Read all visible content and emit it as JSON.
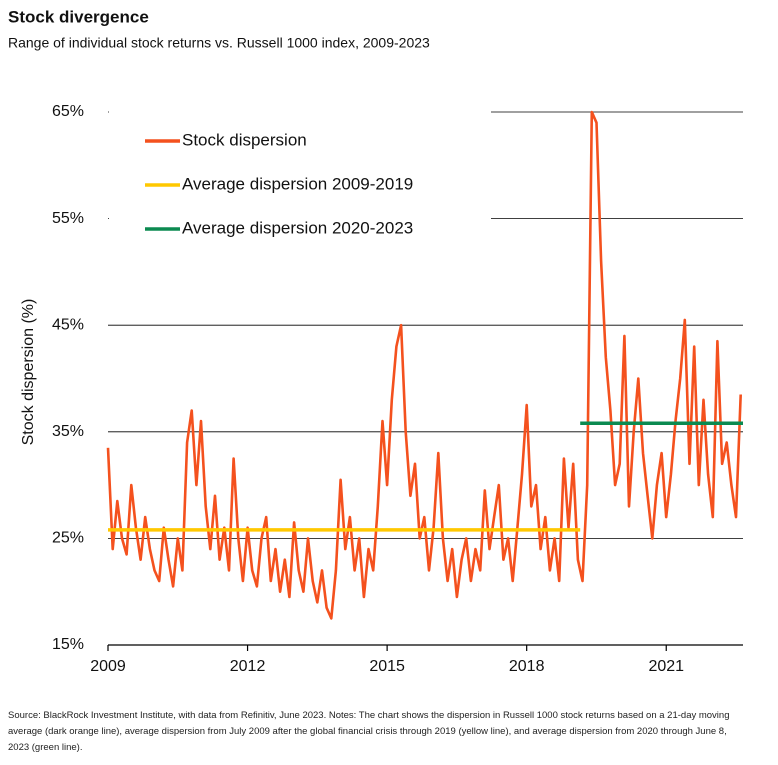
{
  "chart_data": {
    "type": "line",
    "title": "Stock divergence",
    "subtitle": "Range of individual stock returns vs. Russell 1000 index, 2009-2023",
    "y_label": "Stock dispersion (%)",
    "note": "Source: BlackRock Investment Institute, with data from Refinitiv, June 2023. Notes: The chart shows the dispersion in Russell 1000 stock returns based on a 21-day moving average (dark orange line), average dispersion from July 2009 after the global financial crisis through 2019 (yellow line), and average dispersion from 2020 through June 8, 2023 (green line).",
    "xlim": [
      2009,
      2022.65
    ],
    "xticks": [
      2009,
      2012,
      2015,
      2018,
      2021
    ],
    "ylim": [
      15,
      65
    ],
    "yticks": [
      {
        "value": 15,
        "label": "15%"
      },
      {
        "value": 25,
        "label": "25%"
      },
      {
        "value": 35,
        "label": "35%"
      },
      {
        "value": 45,
        "label": "45%"
      },
      {
        "value": 55,
        "label": "55%"
      },
      {
        "value": 65,
        "label": "65%"
      }
    ],
    "grid": true,
    "legend": "upper left",
    "series": [
      {
        "name": "Stock dispersion",
        "color": "#f4511e",
        "x": [
          2009.0,
          2009.1,
          2009.2,
          2009.3,
          2009.4,
          2009.5,
          2009.6,
          2009.7,
          2009.8,
          2009.9,
          2010.0,
          2010.1,
          2010.2,
          2010.3,
          2010.4,
          2010.5,
          2010.6,
          2010.7,
          2010.8,
          2010.9,
          2011.0,
          2011.1,
          2011.2,
          2011.3,
          2011.4,
          2011.5,
          2011.6,
          2011.7,
          2011.8,
          2011.9,
          2012.0,
          2012.1,
          2012.2,
          2012.3,
          2012.4,
          2012.5,
          2012.6,
          2012.7,
          2012.8,
          2012.9,
          2013.0,
          2013.1,
          2013.2,
          2013.3,
          2013.4,
          2013.5,
          2013.6,
          2013.7,
          2013.8,
          2013.9,
          2014.0,
          2014.1,
          2014.2,
          2014.3,
          2014.4,
          2014.5,
          2014.6,
          2014.7,
          2014.8,
          2014.9,
          2015.0,
          2015.1,
          2015.2,
          2015.3,
          2015.4,
          2015.5,
          2015.6,
          2015.7,
          2015.8,
          2015.9,
          2016.0,
          2016.1,
          2016.2,
          2016.3,
          2016.4,
          2016.5,
          2016.6,
          2016.7,
          2016.8,
          2016.9,
          2017.0,
          2017.1,
          2017.2,
          2017.3,
          2017.4,
          2017.5,
          2017.6,
          2017.7,
          2017.8,
          2017.9,
          2018.0,
          2018.1,
          2018.2,
          2018.3,
          2018.4,
          2018.5,
          2018.6,
          2018.7,
          2018.8,
          2018.9,
          2019.0,
          2019.1,
          2019.2,
          2019.3,
          2019.4,
          2019.5,
          2019.6,
          2019.7,
          2019.8,
          2019.9,
          2020.0,
          2020.1,
          2020.2,
          2020.3,
          2020.4,
          2020.5,
          2020.6,
          2020.7,
          2020.8,
          2020.9,
          2021.0,
          2021.1,
          2021.2,
          2021.3,
          2021.4,
          2021.5,
          2021.6,
          2021.7,
          2021.8,
          2021.9,
          2022.0,
          2022.1,
          2022.2,
          2022.3,
          2022.4,
          2022.5,
          2022.6
        ],
        "values": [
          33.5,
          24,
          28.5,
          25,
          23.5,
          30,
          26,
          23,
          27,
          24,
          22,
          21,
          26,
          23,
          20.5,
          25,
          22,
          34,
          37,
          30,
          36,
          28,
          24,
          29,
          23,
          26,
          22,
          32.5,
          25,
          21,
          26,
          22,
          20.5,
          25,
          27,
          21,
          24,
          20,
          23,
          19.5,
          26.5,
          22,
          20,
          25,
          21,
          19,
          22,
          18.5,
          17.5,
          22,
          30.5,
          24,
          27,
          22,
          25,
          19.5,
          24,
          22,
          28,
          36,
          30,
          38,
          43,
          45,
          35,
          29,
          32,
          25,
          27,
          22,
          26,
          33,
          25,
          21,
          24,
          19.5,
          23,
          25,
          21,
          24,
          22,
          29.5,
          24,
          27,
          30,
          23,
          25,
          21,
          26,
          31,
          37.5,
          28,
          30,
          24,
          27,
          22,
          25,
          21,
          32.5,
          26,
          32,
          23,
          21,
          30,
          65,
          64,
          51,
          42,
          37,
          30,
          32,
          44,
          28,
          35,
          40,
          33,
          29,
          25,
          30,
          33,
          27,
          31,
          36,
          40,
          45.5,
          32,
          43,
          30,
          38,
          31,
          27,
          43.5,
          32,
          34,
          30,
          27,
          38.5
        ]
      },
      {
        "name": "Average dispersion 2009-2019",
        "color": "#ffc800",
        "x": [
          2009,
          2019.15
        ],
        "values": [
          25.8,
          25.8
        ]
      },
      {
        "name": "Average dispersion 2020-2023",
        "color": "#0b8a50",
        "x": [
          2019.15,
          2022.65
        ],
        "values": [
          35.8,
          35.8
        ]
      }
    ]
  }
}
